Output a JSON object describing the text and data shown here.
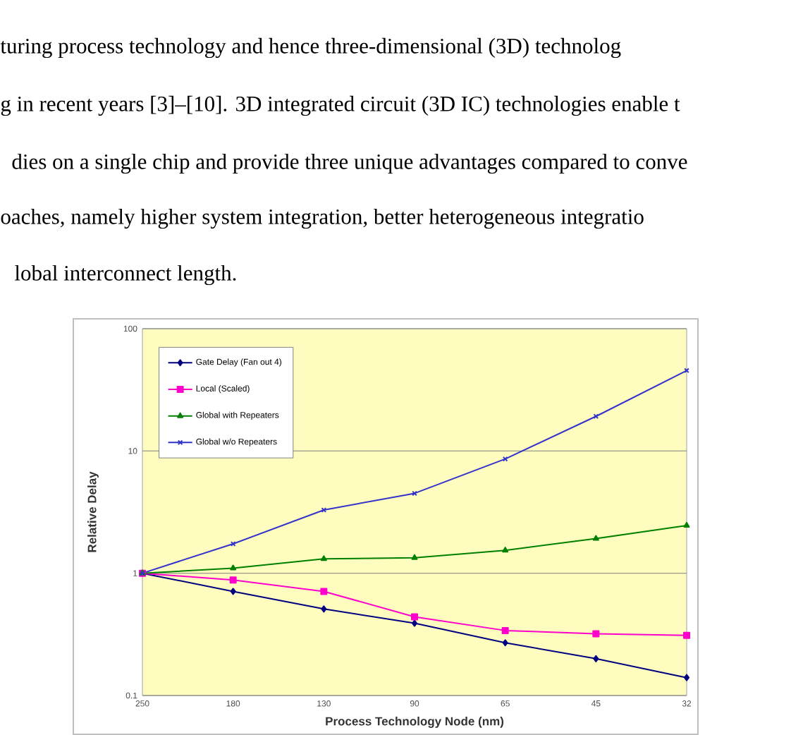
{
  "chart_data": {
    "type": "line",
    "categories": [
      "250",
      "180",
      "130",
      "90",
      "65",
      "45",
      "32"
    ],
    "series": [
      {
        "name": "Gate Delay (Fan out 4)",
        "color": "#000080",
        "marker": "diamond",
        "values": [
          1,
          0.71,
          0.51,
          0.39,
          0.27,
          0.2,
          0.14
        ]
      },
      {
        "name": "Local (Scaled)",
        "color": "#ff00cc",
        "marker": "square",
        "values": [
          1,
          0.88,
          0.71,
          0.44,
          0.34,
          0.32,
          0.31
        ]
      },
      {
        "name": "Global with Repeaters",
        "color": "#008000",
        "marker": "triangle",
        "values": [
          1,
          1.1,
          1.31,
          1.34,
          1.54,
          1.92,
          2.46
        ]
      },
      {
        "name": "Global w/o Repeaters",
        "color": "#3333cc",
        "marker": "cross",
        "values": [
          1,
          1.74,
          3.29,
          4.5,
          8.6,
          19.2,
          45.5
        ]
      }
    ],
    "xlabel": "Process Technology Node (nm)",
    "ylabel": "Relative Delay",
    "ylim": [
      0.1,
      100
    ],
    "yticks": [
      0.1,
      1,
      10,
      100
    ],
    "log": "y",
    "grid": "y",
    "legend": "top left",
    "annotations": [
      "turing process technology and hence three-dimensional (3D) technolog",
      "g in recent years [3]–[10]. 3D integrated circuit (3D IC) technologies enable t",
      "dies on a single chip and provide three unique advantages compared to conve",
      "oaches, namely higher system integration, better heterogeneous integratio",
      "lobal interconnect length."
    ]
  }
}
